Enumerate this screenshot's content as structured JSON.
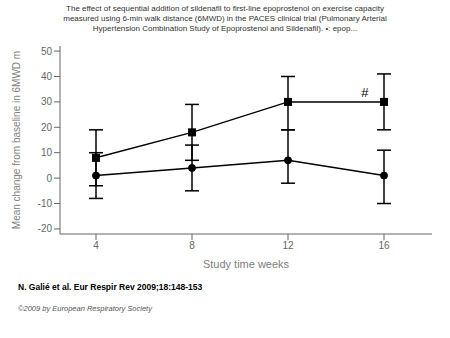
{
  "chart_data": {
    "type": "line",
    "title": "The effect of sequential addition of sildenafil to first-line epoprostenol on exercise capacity\nmeasured using 6-min walk distance (6MWD) in the PACES clinical trial (Pulmonary Arterial\nHypertension Combination Study of Epoprostenol and Sildenafil). •: epop...",
    "xlabel": "Study time weeks",
    "ylabel": "Mean change from baseline in 6MWD m",
    "citation": "N. Galié et al. Eur Respir Rev 2009;18:148-153",
    "copyright": "©2009 by European Respiratory Society",
    "x": [
      4,
      8,
      12,
      16
    ],
    "series": [
      {
        "color": "#000000",
        "marker": "square",
        "line_style": "solid",
        "values": [
          8,
          18,
          30,
          30
        ],
        "error_upper": [
          11,
          11,
          10,
          11
        ],
        "error_lower": [
          11,
          11,
          11,
          11
        ]
      },
      {
        "color": "#000000",
        "marker": "circle",
        "line_style": "solid",
        "values": [
          1,
          4,
          7,
          1
        ],
        "error_upper": [
          9,
          9,
          12,
          10
        ],
        "error_lower": [
          9,
          9,
          9,
          11
        ]
      }
    ],
    "annotations": [
      {
        "text": "#",
        "x": 15.2,
        "y": 32
      }
    ],
    "xlim": [
      2.5,
      18
    ],
    "xticks": [
      4,
      8,
      12,
      16
    ],
    "ylim": [
      -22,
      52
    ],
    "yticks": [
      -20,
      -10,
      0,
      10,
      20,
      30,
      40,
      50
    ],
    "grid": false
  }
}
